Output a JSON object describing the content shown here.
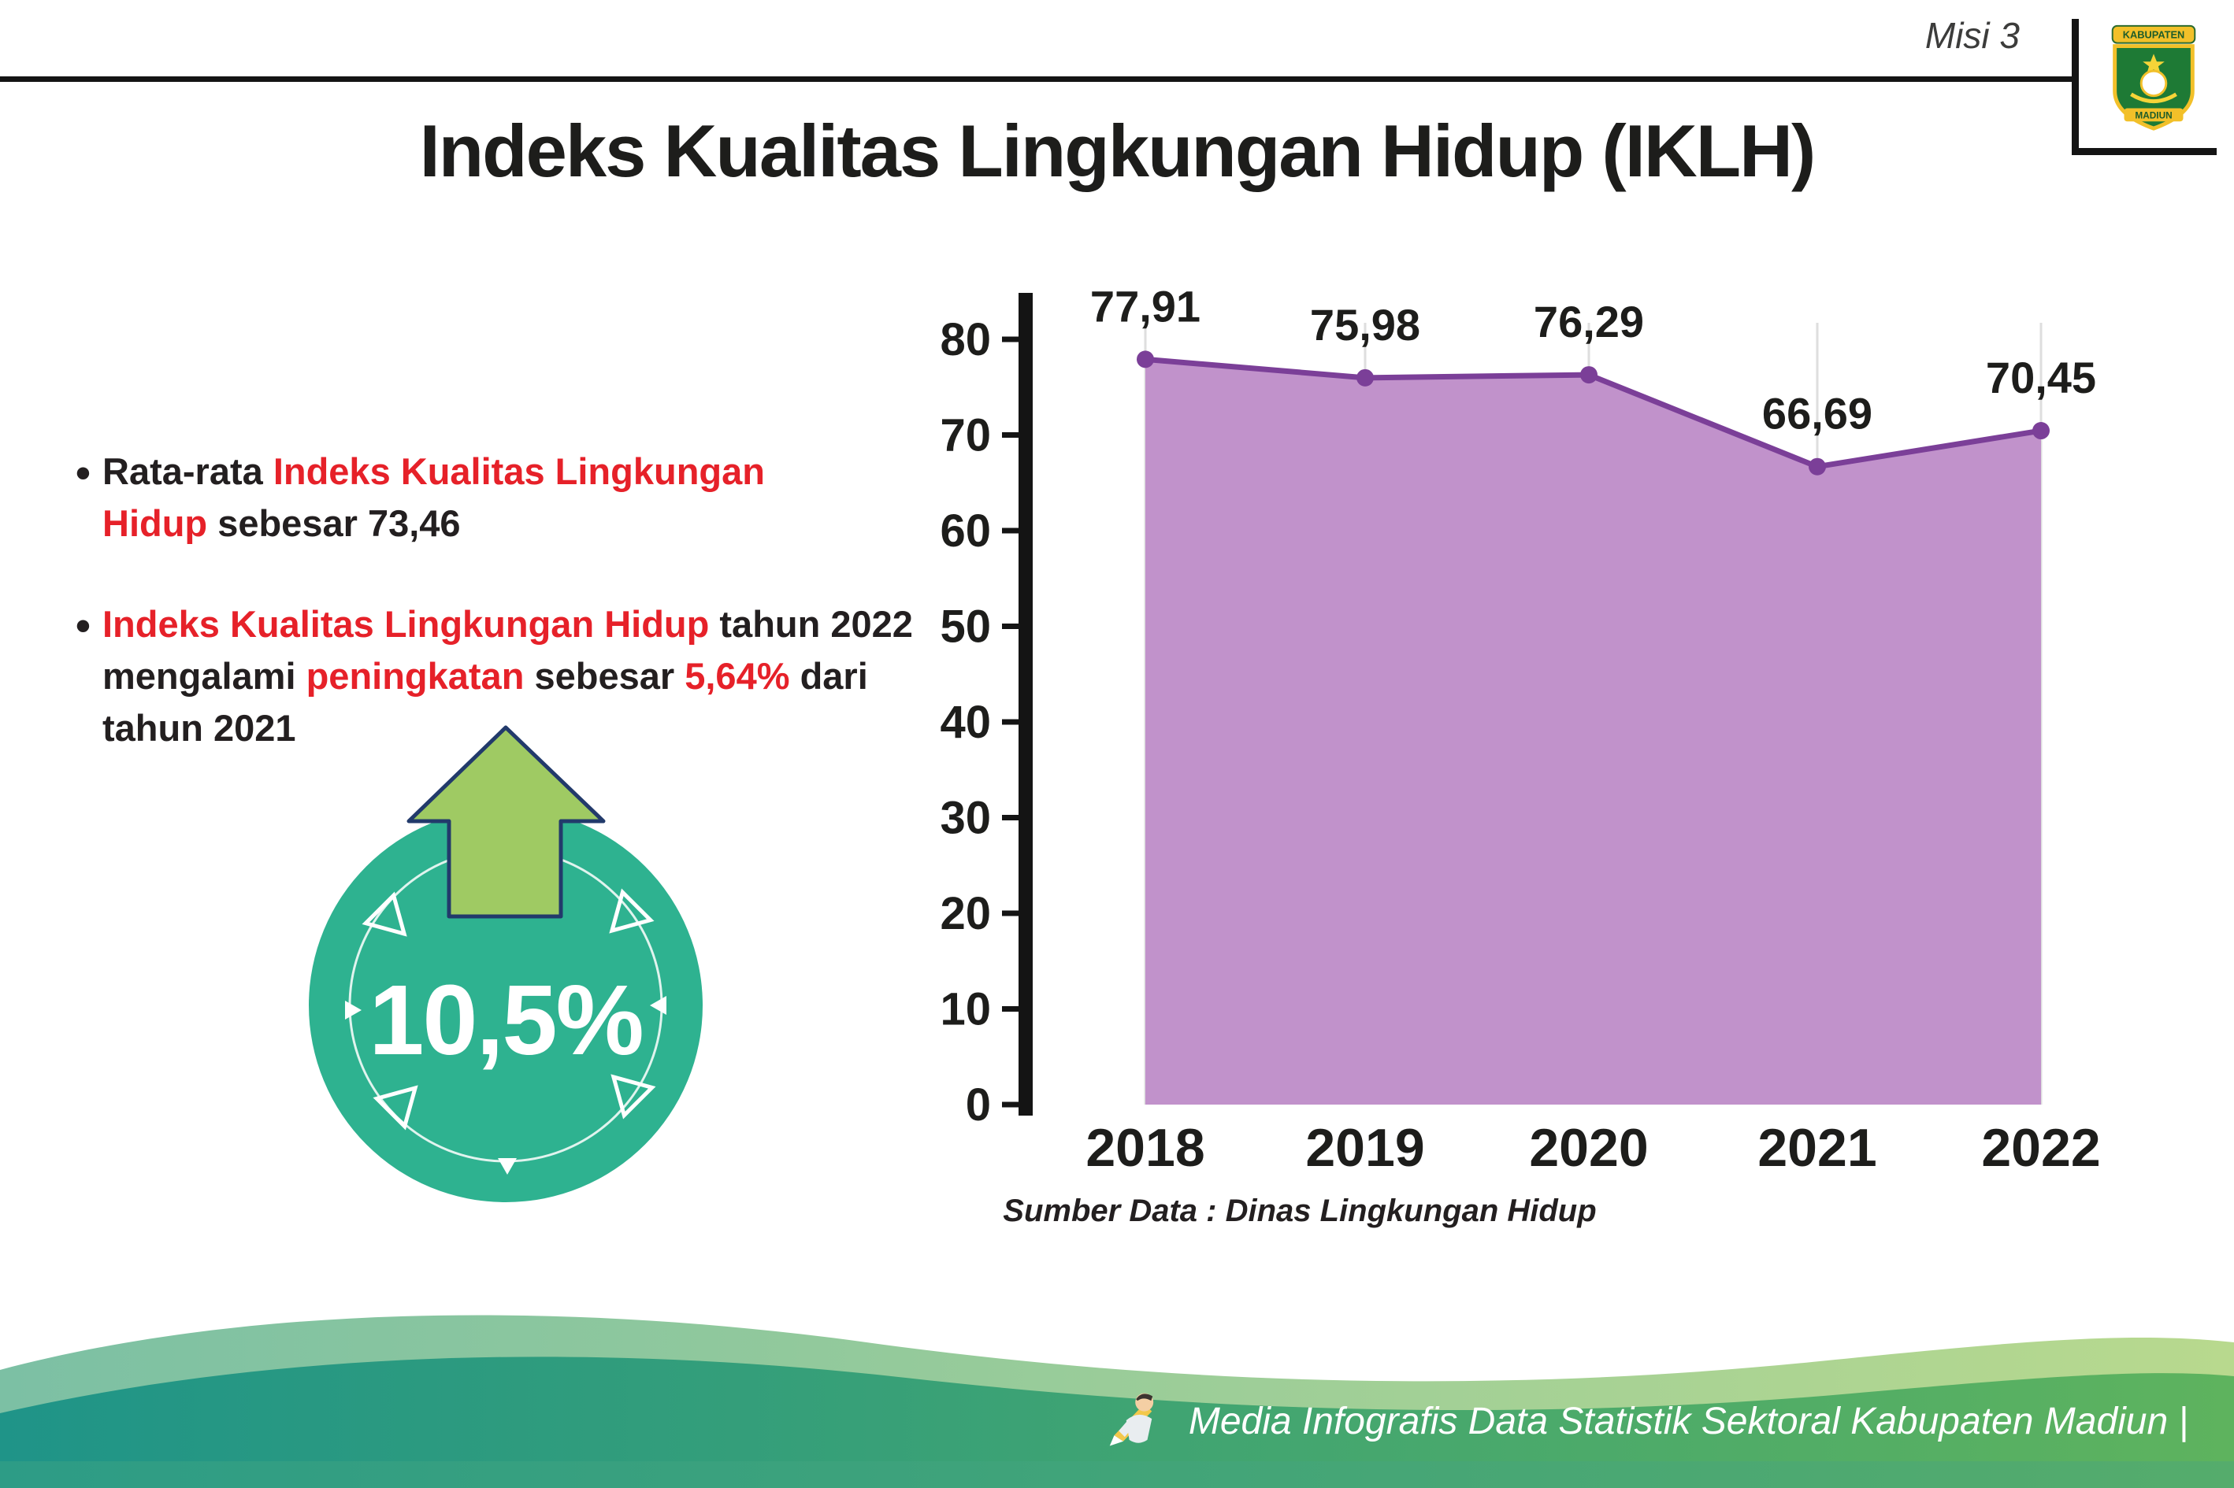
{
  "header": {
    "misi_label": "Misi 3",
    "title": "Indeks Kualitas Lingkungan Hidup (IKLH)",
    "logo_top_text": "KABUPATEN",
    "logo_bottom_text": "MADIUN"
  },
  "bullets": {
    "marker": "•",
    "items": [
      {
        "segments": [
          {
            "text": "Rata-rata ",
            "color": "dark"
          },
          {
            "text": "Indeks Kualitas Lingkungan Hidup",
            "color": "red"
          },
          {
            "text": " sebesar 73,46",
            "color": "dark"
          }
        ]
      },
      {
        "segments": [
          {
            "text": "Indeks Kualitas Lingkungan Hidup",
            "color": "red"
          },
          {
            "text": " tahun 2022 mengalami ",
            "color": "dark"
          },
          {
            "text": "peningkatan",
            "color": "red"
          },
          {
            "text": " sebesar ",
            "color": "dark"
          },
          {
            "text": "5,64%",
            "color": "red"
          },
          {
            "text": " dari tahun 2021",
            "color": "dark"
          }
        ]
      }
    ]
  },
  "badge": {
    "value": "10,5%"
  },
  "chart_data": {
    "type": "area",
    "categories": [
      "2018",
      "2019",
      "2020",
      "2021",
      "2022"
    ],
    "values": [
      77.91,
      75.98,
      76.29,
      66.69,
      70.45
    ],
    "value_labels": [
      "77,91",
      "75,98",
      "76,29",
      "66,69",
      "70,45"
    ],
    "ylim": [
      0,
      80
    ],
    "ytick_step": 10,
    "grid": "vertical-light",
    "legend": "none",
    "area_color": "#c192cb",
    "line_color": "#7b3f98",
    "source_note": "Sumber Data : Dinas Lingkungan Hidup"
  },
  "footer": {
    "credit": "Media Infografis Data Statistik Sektoral Kabupaten Madiun |"
  },
  "colors": {
    "accent_red": "#e62129",
    "text_dark": "#231f20",
    "badge_teal": "#2eb290",
    "arrow_green": "#9fca63",
    "footer_teal": "#1f9488",
    "footer_green": "#5eb35e"
  }
}
